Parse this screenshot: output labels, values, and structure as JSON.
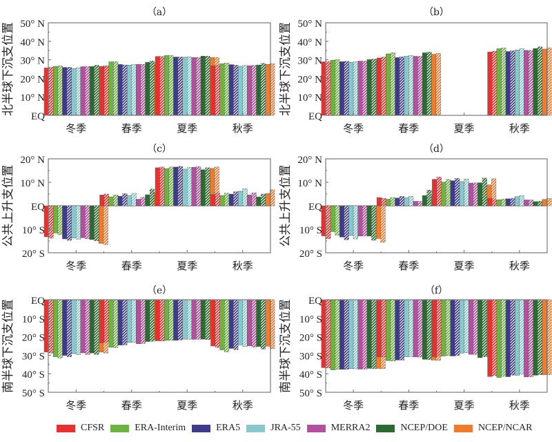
{
  "series_names": [
    "CFSR",
    "ERA-Interim",
    "ERA5",
    "JRA-55",
    "MERRA2",
    "NCEP/DOE",
    "NCEP/NCAR"
  ],
  "series_colors": [
    "#e8302e",
    "#6db33f",
    "#3f3b8c",
    "#86c8cb",
    "#b34f9c",
    "#2a6b30",
    "#f07b2c"
  ],
  "bar_variants": [
    "solid",
    "hatched"
  ],
  "chart_data": [
    {
      "panel": "a",
      "type": "bar",
      "title": "（a）",
      "ylabel": "北半球下沉支位置",
      "categories": [
        "冬季",
        "春季",
        "夏季",
        "秋季"
      ],
      "ylim": [
        0,
        50
      ],
      "yticks": [
        0,
        10,
        20,
        30,
        40,
        50
      ],
      "ytick_labels": [
        "EQ",
        "10° N",
        "20° N",
        "30° N",
        "40° N",
        "50° N"
      ],
      "series": [
        {
          "name": "CFSR",
          "solid": [
            25.6,
            26.4,
            31.8,
            26.8
          ],
          "hatched": [
            25.9,
            26.7,
            31.8,
            27.0
          ]
        },
        {
          "name": "ERA-Interim",
          "solid": [
            26.4,
            28.9,
            32.3,
            27.9
          ],
          "hatched": [
            26.7,
            29.0,
            32.3,
            28.2
          ]
        },
        {
          "name": "ERA5",
          "solid": [
            25.9,
            27.5,
            31.5,
            27.4
          ],
          "hatched": [
            26.0,
            27.2,
            31.5,
            27.1
          ]
        },
        {
          "name": "JRA-55",
          "solid": [
            25.3,
            27.1,
            31.4,
            26.5
          ],
          "hatched": [
            25.7,
            27.4,
            31.6,
            27.0
          ]
        },
        {
          "name": "MERRA2",
          "solid": [
            26.3,
            27.5,
            31.2,
            26.8
          ],
          "hatched": [
            26.3,
            27.5,
            31.2,
            27.0
          ]
        },
        {
          "name": "NCEP/DOE",
          "solid": [
            26.4,
            28.7,
            32.0,
            27.2
          ],
          "hatched": [
            27.1,
            29.4,
            32.0,
            28.1
          ]
        },
        {
          "name": "NCEP/NCAR",
          "solid": [
            26.4,
            27.9,
            31.2,
            27.5
          ],
          "hatched": [
            26.8,
            28.6,
            31.3,
            27.9
          ]
        }
      ]
    },
    {
      "panel": "b",
      "type": "bar",
      "title": "（b）",
      "ylabel": "北半球下沉支位置",
      "categories": [
        "冬季",
        "春季",
        "夏季",
        "秋季"
      ],
      "ylim": [
        0,
        50
      ],
      "yticks": [
        0,
        10,
        20,
        30,
        40,
        50
      ],
      "ytick_labels": [
        "EQ",
        "10° N",
        "20° N",
        "30° N",
        "40° N",
        "50° N"
      ],
      "series": [
        {
          "name": "CFSR",
          "solid": [
            28.9,
            31.0,
            null,
            34.2
          ],
          "hatched": [
            29.1,
            31.5,
            null,
            34.6
          ]
        },
        {
          "name": "ERA-Interim",
          "solid": [
            29.8,
            33.2,
            null,
            36.0
          ],
          "hatched": [
            30.1,
            33.8,
            null,
            36.4
          ]
        },
        {
          "name": "ERA5",
          "solid": [
            29.0,
            31.2,
            null,
            34.5
          ],
          "hatched": [
            29.2,
            31.6,
            null,
            34.9
          ]
        },
        {
          "name": "JRA-55",
          "solid": [
            28.6,
            31.9,
            null,
            35.3
          ],
          "hatched": [
            29.0,
            32.3,
            null,
            36.0
          ]
        },
        {
          "name": "MERRA2",
          "solid": [
            29.3,
            31.9,
            null,
            35.1
          ],
          "hatched": [
            29.3,
            31.9,
            null,
            35.1
          ]
        },
        {
          "name": "NCEP/DOE",
          "solid": [
            30.1,
            33.8,
            null,
            36.1
          ],
          "hatched": [
            30.4,
            34.2,
            null,
            37.0
          ]
        },
        {
          "name": "NCEP/NCAR",
          "solid": [
            30.0,
            33.0,
            null,
            35.8
          ],
          "hatched": [
            30.4,
            33.5,
            null,
            36.5
          ]
        }
      ]
    },
    {
      "panel": "c",
      "type": "bar",
      "title": "（c）",
      "ylabel": "公共上升支位置",
      "categories": [
        "冬季",
        "春季",
        "夏季",
        "秋季"
      ],
      "ylim": [
        -20,
        20
      ],
      "yticks": [
        -20,
        -10,
        0,
        10,
        20
      ],
      "ytick_labels": [
        "20° S",
        "10° S",
        "EQ",
        "10° N",
        "20° N"
      ],
      "series": [
        {
          "name": "CFSR",
          "solid": [
            -13.2,
            4.6,
            16.2,
            4.8
          ],
          "hatched": [
            -13.8,
            5.0,
            16.5,
            5.4
          ]
        },
        {
          "name": "ERA-Interim",
          "solid": [
            -11.6,
            3.8,
            15.8,
            4.4
          ],
          "hatched": [
            -12.3,
            4.6,
            16.5,
            5.4
          ]
        },
        {
          "name": "ERA5",
          "solid": [
            -14.1,
            4.1,
            16.5,
            5.0
          ],
          "hatched": [
            -14.7,
            5.2,
            16.8,
            6.0
          ]
        },
        {
          "name": "JRA-55",
          "solid": [
            -13.7,
            4.4,
            15.6,
            6.2
          ],
          "hatched": [
            -14.2,
            5.3,
            16.3,
            7.3
          ]
        },
        {
          "name": "MERRA2",
          "solid": [
            -13.6,
            2.8,
            16.4,
            4.6
          ],
          "hatched": [
            -14.0,
            3.6,
            16.7,
            5.5
          ]
        },
        {
          "name": "NCEP/DOE",
          "solid": [
            -14.4,
            4.7,
            15.4,
            3.8
          ],
          "hatched": [
            -14.9,
            7.1,
            16.2,
            5.0
          ]
        },
        {
          "name": "NCEP/NCAR",
          "solid": [
            -16.0,
            5.5,
            15.9,
            5.2
          ],
          "hatched": [
            -16.5,
            7.9,
            16.5,
            6.8
          ]
        }
      ]
    },
    {
      "panel": "d",
      "type": "bar",
      "title": "（d）",
      "ylabel": "公共上升支位置",
      "categories": [
        "冬季",
        "春季",
        "夏季",
        "秋季"
      ],
      "ylim": [
        -20,
        20
      ],
      "yticks": [
        -20,
        -10,
        0,
        10,
        20
      ],
      "ytick_labels": [
        "20° S",
        "10° S",
        "EQ",
        "10° N",
        "20° N"
      ],
      "series": [
        {
          "name": "CFSR",
          "solid": [
            -12.8,
            3.5,
            11.3,
            3.2
          ],
          "hatched": [
            -14.0,
            3.2,
            12.3,
            2.4
          ]
        },
        {
          "name": "ERA-Interim",
          "solid": [
            -11.0,
            2.8,
            10.1,
            2.6
          ],
          "hatched": [
            -12.5,
            3.5,
            11.2,
            2.9
          ]
        },
        {
          "name": "ERA5",
          "solid": [
            -13.3,
            3.3,
            10.7,
            3.0
          ],
          "hatched": [
            -14.5,
            4.0,
            11.7,
            3.2
          ]
        },
        {
          "name": "JRA-55",
          "solid": [
            -12.6,
            3.4,
            10.3,
            3.9
          ],
          "hatched": [
            -14.1,
            4.0,
            11.4,
            4.3
          ]
        },
        {
          "name": "MERRA2",
          "solid": [
            -12.9,
            1.9,
            9.7,
            2.5
          ],
          "hatched": [
            -12.9,
            1.9,
            9.8,
            2.5
          ]
        },
        {
          "name": "NCEP/DOE",
          "solid": [
            -12.9,
            4.4,
            9.8,
            1.8
          ],
          "hatched": [
            -14.7,
            6.7,
            11.8,
            2.0
          ]
        },
        {
          "name": "NCEP/NCAR",
          "solid": [
            -13.9,
            4.4,
            8.9,
            2.7
          ],
          "hatched": [
            -15.5,
            6.7,
            11.5,
            3.1
          ]
        }
      ]
    },
    {
      "panel": "e",
      "type": "bar",
      "title": "（e）",
      "ylabel": "南半球下沉支位置",
      "categories": [
        "冬季",
        "春季",
        "夏季",
        "秋季"
      ],
      "ylim": [
        -50,
        0
      ],
      "yticks": [
        -50,
        -40,
        -30,
        -20,
        -10,
        0
      ],
      "ytick_labels": [
        "50° S",
        "40° S",
        "30° S",
        "20° S",
        "10° S",
        "EQ"
      ],
      "series": [
        {
          "name": "CFSR",
          "solid": [
            -28.3,
            -23.3,
            -22.2,
            -25.0
          ],
          "hatched": [
            -28.8,
            -23.1,
            -22.3,
            -25.8
          ]
        },
        {
          "name": "ERA-Interim",
          "solid": [
            -30.8,
            -25.7,
            -21.9,
            -27.1
          ],
          "hatched": [
            -31.5,
            -25.9,
            -21.9,
            -28.2
          ]
        },
        {
          "name": "ERA5",
          "solid": [
            -30.1,
            -24.5,
            -21.9,
            -26.3
          ],
          "hatched": [
            -30.8,
            -24.4,
            -21.7,
            -27.0
          ]
        },
        {
          "name": "JRA-55",
          "solid": [
            -29.1,
            -23.0,
            -21.3,
            -24.4
          ],
          "hatched": [
            -29.7,
            -23.0,
            -21.4,
            -25.2
          ]
        },
        {
          "name": "MERRA2",
          "solid": [
            -28.7,
            -23.8,
            -21.4,
            -24.9
          ],
          "hatched": [
            -29.6,
            -23.6,
            -21.4,
            -25.6
          ]
        },
        {
          "name": "NCEP/DOE",
          "solid": [
            -28.8,
            -22.6,
            -21.3,
            -25.3
          ],
          "hatched": [
            -29.6,
            -22.5,
            -21.5,
            -26.7
          ]
        },
        {
          "name": "NCEP/NCAR",
          "solid": [
            -28.2,
            -21.6,
            -21.1,
            -25.1
          ],
          "hatched": [
            -28.8,
            -21.5,
            -21.3,
            -26.4
          ]
        }
      ]
    },
    {
      "panel": "f",
      "type": "bar",
      "title": "（f）",
      "ylabel": "南半球下沉支位置",
      "categories": [
        "冬季",
        "春季",
        "夏季",
        "秋季"
      ],
      "ylim": [
        -50,
        0
      ],
      "yticks": [
        -50,
        -40,
        -30,
        -20,
        -10,
        0
      ],
      "ytick_labels": [
        "50° S",
        "40° S",
        "30° S",
        "20° S",
        "10° S",
        "EQ"
      ],
      "series": [
        {
          "name": "CFSR",
          "solid": [
            -36.7,
            -30.8,
            -30.8,
            -41.5
          ],
          "hatched": [
            -36.9,
            -30.9,
            -30.4,
            -41.0
          ]
        },
        {
          "name": "ERA-Interim",
          "solid": [
            -37.9,
            -32.9,
            -30.4,
            -42.0
          ],
          "hatched": [
            -37.6,
            -33.1,
            -30.1,
            -41.4
          ]
        },
        {
          "name": "ERA5",
          "solid": [
            -37.6,
            -32.6,
            -30.4,
            -41.6
          ],
          "hatched": [
            -37.6,
            -32.6,
            -30.2,
            -40.8
          ]
        },
        {
          "name": "JRA-55",
          "solid": [
            -37.2,
            -30.8,
            -28.8,
            -40.8
          ],
          "hatched": [
            -37.3,
            -30.7,
            -28.6,
            -40.2
          ]
        },
        {
          "name": "MERRA2",
          "solid": [
            -37.5,
            -30.9,
            -29.5,
            -41.7
          ],
          "hatched": [
            -37.5,
            -31.0,
            -29.6,
            -41.6
          ]
        },
        {
          "name": "NCEP/DOE",
          "solid": [
            -37.1,
            -32.2,
            -31.3,
            -40.8
          ],
          "hatched": [
            -37.2,
            -32.4,
            -30.8,
            -40.5
          ]
        },
        {
          "name": "NCEP/NCAR",
          "solid": [
            -37.1,
            -32.6,
            -30.7,
            -40.5
          ],
          "hatched": [
            -37.2,
            -32.7,
            -30.8,
            -40.5
          ]
        }
      ]
    }
  ]
}
